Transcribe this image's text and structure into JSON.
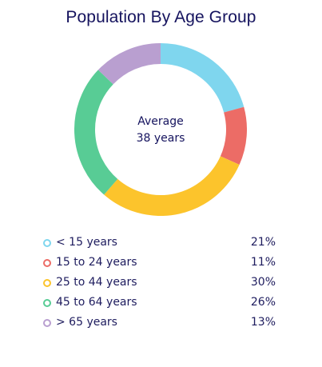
{
  "chart_data": {
    "type": "pie",
    "title": "Population By Age Group",
    "center_label": {
      "line1": "Average",
      "line2": "38 years"
    },
    "categories": [
      "< 15 years",
      "15 to 24 years",
      "25 to 44 years",
      "45 to 64 years",
      "> 65 years"
    ],
    "values": [
      21,
      11,
      30,
      26,
      13
    ],
    "value_labels": [
      "21%",
      "11%",
      "30%",
      "26%",
      "13%"
    ],
    "colors": [
      "#7fd6ee",
      "#ec6c66",
      "#fcc42c",
      "#58cc95",
      "#b99fd0"
    ],
    "legend_position": "bottom"
  }
}
